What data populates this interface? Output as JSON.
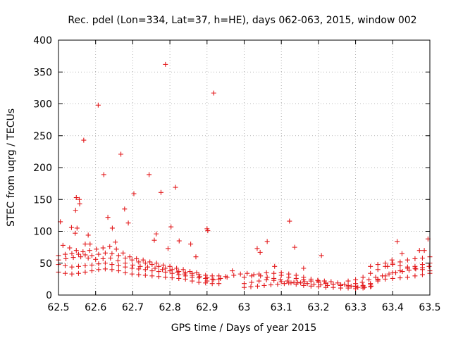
{
  "chart_data": {
    "type": "scatter",
    "title": "Rec. pdel (Lon=334, Lat=37, h=HE), days 062-063, 2015, window 002",
    "xlabel": "GPS time / Days of year 2015",
    "ylabel": "STEC from uqrg / TECUs",
    "xlim": [
      62.5,
      63.5
    ],
    "ylim": [
      0,
      400
    ],
    "x_ticks": [
      62.5,
      62.6,
      62.7,
      62.8,
      62.9,
      63,
      63.1,
      63.2,
      63.3,
      63.4,
      63.5
    ],
    "x_tick_labels": [
      "62.5",
      "62.6",
      "62.7",
      "62.8",
      "62.9",
      "63",
      "63.1",
      "63.2",
      "63.3",
      "63.4",
      "63.5"
    ],
    "y_ticks": [
      0,
      50,
      100,
      150,
      200,
      250,
      300,
      350,
      400
    ],
    "y_tick_labels": [
      "0",
      "50",
      "100",
      "150",
      "200",
      "250",
      "300",
      "350",
      "400"
    ],
    "grid": true,
    "marker": "+",
    "color": "#e31a1c",
    "outliers": [
      [
        62.505,
        115
      ],
      [
        62.535,
        106
      ],
      [
        62.545,
        97
      ],
      [
        62.548,
        153
      ],
      [
        62.55,
        105
      ],
      [
        62.546,
        133
      ],
      [
        62.556,
        150
      ],
      [
        62.557,
        143
      ],
      [
        62.568,
        243
      ],
      [
        62.572,
        80
      ],
      [
        62.58,
        94
      ],
      [
        62.585,
        80
      ],
      [
        62.607,
        298
      ],
      [
        62.622,
        189
      ],
      [
        62.633,
        122
      ],
      [
        62.645,
        105
      ],
      [
        62.653,
        83
      ],
      [
        62.668,
        221
      ],
      [
        62.678,
        135
      ],
      [
        62.688,
        113
      ],
      [
        62.703,
        159
      ],
      [
        62.744,
        189
      ],
      [
        62.758,
        86
      ],
      [
        62.763,
        96
      ],
      [
        62.776,
        161
      ],
      [
        62.788,
        362
      ],
      [
        62.795,
        73
      ],
      [
        62.803,
        107
      ],
      [
        62.815,
        169
      ],
      [
        62.825,
        85
      ],
      [
        62.856,
        80
      ],
      [
        62.87,
        60
      ],
      [
        62.9,
        104
      ],
      [
        62.902,
        101
      ],
      [
        62.918,
        317
      ],
      [
        62.968,
        38
      ],
      [
        63.035,
        73
      ],
      [
        63.043,
        67
      ],
      [
        63.062,
        84
      ],
      [
        63.082,
        45
      ],
      [
        63.122,
        116
      ],
      [
        63.136,
        75
      ],
      [
        63.16,
        42
      ],
      [
        63.208,
        62
      ],
      [
        63.386,
        45
      ],
      [
        63.398,
        55
      ],
      [
        63.412,
        84
      ],
      [
        63.425,
        65
      ],
      [
        63.472,
        70
      ],
      [
        63.485,
        70
      ],
      [
        63.495,
        88
      ]
    ],
    "series": [
      {
        "name": "track-1",
        "points": [
          [
            62.5,
            36
          ],
          [
            62.518,
            34
          ],
          [
            62.536,
            33
          ],
          [
            62.554,
            34
          ],
          [
            62.572,
            36
          ],
          [
            62.59,
            38
          ],
          [
            62.608,
            40
          ],
          [
            62.626,
            41
          ],
          [
            62.644,
            40
          ],
          [
            62.662,
            38
          ],
          [
            62.68,
            35
          ],
          [
            62.698,
            33
          ],
          [
            62.716,
            32
          ],
          [
            62.734,
            31
          ],
          [
            62.752,
            30
          ],
          [
            62.77,
            29
          ],
          [
            62.788,
            28
          ],
          [
            62.806,
            27
          ],
          [
            62.824,
            26
          ],
          [
            62.842,
            25
          ],
          [
            62.86,
            22
          ],
          [
            62.878,
            20
          ],
          [
            62.896,
            19
          ],
          [
            62.914,
            18
          ],
          [
            62.932,
            18
          ]
        ]
      },
      {
        "name": "track-2",
        "points": [
          [
            62.5,
            48
          ],
          [
            62.518,
            46
          ],
          [
            62.536,
            44
          ],
          [
            62.554,
            45
          ],
          [
            62.572,
            46
          ],
          [
            62.59,
            47
          ],
          [
            62.608,
            49
          ],
          [
            62.626,
            50
          ],
          [
            62.644,
            48
          ],
          [
            62.662,
            46
          ],
          [
            62.68,
            44
          ],
          [
            62.698,
            42
          ],
          [
            62.716,
            41
          ],
          [
            62.734,
            40
          ],
          [
            62.752,
            38
          ],
          [
            62.77,
            37
          ],
          [
            62.788,
            36
          ],
          [
            62.806,
            34
          ],
          [
            62.824,
            32
          ],
          [
            62.842,
            30
          ],
          [
            62.86,
            28
          ],
          [
            62.878,
            27
          ],
          [
            62.896,
            26
          ],
          [
            62.914,
            25
          ],
          [
            62.932,
            25
          ]
        ]
      },
      {
        "name": "track-3",
        "points": [
          [
            62.5,
            62
          ],
          [
            62.518,
            64
          ],
          [
            62.536,
            65
          ],
          [
            62.554,
            64
          ],
          [
            62.572,
            63
          ],
          [
            62.59,
            62
          ],
          [
            62.608,
            64
          ],
          [
            62.626,
            66
          ],
          [
            62.644,
            65
          ],
          [
            62.662,
            62
          ],
          [
            62.68,
            58
          ],
          [
            62.698,
            55
          ],
          [
            62.716,
            52
          ],
          [
            62.734,
            50
          ],
          [
            62.752,
            48
          ],
          [
            62.77,
            45
          ],
          [
            62.788,
            42
          ],
          [
            62.806,
            40
          ],
          [
            62.824,
            37
          ],
          [
            62.842,
            35
          ],
          [
            62.86,
            34
          ],
          [
            62.878,
            32
          ],
          [
            62.896,
            31
          ],
          [
            62.914,
            30
          ],
          [
            62.932,
            30
          ],
          [
            62.95,
            29
          ]
        ]
      },
      {
        "name": "track-4",
        "points": [
          [
            62.512,
            78
          ],
          [
            62.53,
            74
          ],
          [
            62.548,
            70
          ],
          [
            62.566,
            68
          ],
          [
            62.584,
            70
          ],
          [
            62.602,
            72
          ],
          [
            62.62,
            74
          ],
          [
            62.638,
            76
          ],
          [
            62.656,
            72
          ],
          [
            62.674,
            66
          ],
          [
            62.692,
            60
          ],
          [
            62.71,
            57
          ],
          [
            62.728,
            55
          ],
          [
            62.746,
            52
          ],
          [
            62.764,
            50
          ],
          [
            62.782,
            47
          ],
          [
            62.8,
            45
          ],
          [
            62.818,
            42
          ],
          [
            62.836,
            40
          ],
          [
            62.854,
            37
          ],
          [
            62.872,
            35
          ]
        ]
      },
      {
        "name": "track-5",
        "points": [
          [
            62.5,
            55
          ],
          [
            62.52,
            57
          ],
          [
            62.54,
            59
          ],
          [
            62.56,
            60
          ],
          [
            62.58,
            58
          ],
          [
            62.6,
            56
          ],
          [
            62.62,
            57
          ],
          [
            62.64,
            58
          ],
          [
            62.66,
            54
          ],
          [
            62.68,
            50
          ],
          [
            62.7,
            47
          ],
          [
            62.72,
            45
          ],
          [
            62.74,
            44
          ],
          [
            62.76,
            42
          ],
          [
            62.78,
            40
          ],
          [
            62.8,
            38
          ],
          [
            62.82,
            36
          ],
          [
            62.84,
            33
          ],
          [
            62.86,
            31
          ],
          [
            62.88,
            29
          ],
          [
            62.9,
            27
          ]
        ]
      },
      {
        "name": "track-6",
        "points": [
          [
            62.9,
            22
          ],
          [
            62.918,
            24
          ],
          [
            62.936,
            26
          ],
          [
            62.954,
            28
          ],
          [
            62.972,
            31
          ],
          [
            62.99,
            33
          ],
          [
            63.008,
            34
          ],
          [
            63.026,
            32
          ],
          [
            63.044,
            30
          ],
          [
            63.062,
            28
          ],
          [
            63.08,
            26
          ],
          [
            63.098,
            24
          ],
          [
            63.116,
            22
          ],
          [
            63.134,
            20
          ],
          [
            63.152,
            19
          ],
          [
            63.17,
            18
          ],
          [
            63.188,
            17
          ],
          [
            63.206,
            16
          ],
          [
            63.224,
            15
          ]
        ]
      },
      {
        "name": "track-7",
        "points": [
          [
            63.0,
            12
          ],
          [
            63.018,
            13
          ],
          [
            63.036,
            14
          ],
          [
            63.054,
            15
          ],
          [
            63.072,
            16
          ],
          [
            63.09,
            17
          ],
          [
            63.108,
            18
          ],
          [
            63.126,
            19
          ],
          [
            63.144,
            20
          ],
          [
            63.162,
            21
          ],
          [
            63.18,
            22
          ],
          [
            63.198,
            23
          ],
          [
            63.216,
            22
          ],
          [
            63.234,
            21
          ],
          [
            63.252,
            19
          ],
          [
            63.27,
            17
          ],
          [
            63.288,
            14
          ],
          [
            63.306,
            12
          ],
          [
            63.324,
            12
          ],
          [
            63.342,
            14
          ]
        ]
      },
      {
        "name": "track-8",
        "points": [
          [
            63.0,
            18
          ],
          [
            63.02,
            20
          ],
          [
            63.04,
            22
          ],
          [
            63.06,
            24
          ],
          [
            63.08,
            23
          ],
          [
            63.1,
            21
          ],
          [
            63.12,
            19
          ],
          [
            63.14,
            17
          ],
          [
            63.16,
            15
          ],
          [
            63.18,
            14
          ],
          [
            63.2,
            13
          ],
          [
            63.22,
            12
          ],
          [
            63.24,
            12
          ],
          [
            63.26,
            11
          ],
          [
            63.28,
            11
          ],
          [
            63.3,
            10
          ],
          [
            63.32,
            11
          ],
          [
            63.34,
            13
          ]
        ]
      },
      {
        "name": "track-9",
        "points": [
          [
            63.0,
            28
          ],
          [
            63.02,
            30
          ],
          [
            63.04,
            33
          ],
          [
            63.06,
            35
          ],
          [
            63.08,
            34
          ],
          [
            63.1,
            31
          ],
          [
            63.12,
            28
          ],
          [
            63.14,
            26
          ],
          [
            63.16,
            24
          ],
          [
            63.18,
            22
          ],
          [
            63.2,
            20
          ],
          [
            63.22,
            18
          ],
          [
            63.24,
            17
          ],
          [
            63.26,
            16
          ],
          [
            63.28,
            15
          ],
          [
            63.3,
            14
          ],
          [
            63.32,
            15
          ],
          [
            63.34,
            17
          ],
          [
            63.36,
            22
          ]
        ]
      },
      {
        "name": "track-10",
        "points": [
          [
            63.1,
            35
          ],
          [
            63.12,
            33
          ],
          [
            63.14,
            31
          ],
          [
            63.16,
            28
          ],
          [
            63.18,
            25
          ],
          [
            63.2,
            22
          ],
          [
            63.22,
            19
          ],
          [
            63.24,
            17
          ],
          [
            63.26,
            15
          ],
          [
            63.28,
            14
          ],
          [
            63.3,
            13
          ],
          [
            63.32,
            14
          ],
          [
            63.34,
            18
          ],
          [
            63.36,
            25
          ],
          [
            63.38,
            30
          ],
          [
            63.4,
            35
          ],
          [
            63.42,
            38
          ],
          [
            63.44,
            42
          ],
          [
            63.46,
            45
          ],
          [
            63.48,
            48
          ],
          [
            63.5,
            50
          ]
        ]
      },
      {
        "name": "track-11",
        "points": [
          [
            63.3,
            18
          ],
          [
            63.318,
            20
          ],
          [
            63.336,
            24
          ],
          [
            63.354,
            28
          ],
          [
            63.372,
            30
          ],
          [
            63.39,
            33
          ],
          [
            63.408,
            35
          ],
          [
            63.426,
            37
          ],
          [
            63.444,
            39
          ],
          [
            63.462,
            41
          ],
          [
            63.48,
            43
          ],
          [
            63.498,
            45
          ]
        ]
      },
      {
        "name": "track-12",
        "points": [
          [
            63.28,
            22
          ],
          [
            63.3,
            24
          ],
          [
            63.32,
            28
          ],
          [
            63.34,
            34
          ],
          [
            63.36,
            40
          ],
          [
            63.38,
            45
          ],
          [
            63.4,
            50
          ],
          [
            63.42,
            52
          ],
          [
            63.44,
            55
          ],
          [
            63.46,
            57
          ],
          [
            63.48,
            58
          ],
          [
            63.5,
            60
          ]
        ]
      },
      {
        "name": "track-13",
        "points": [
          [
            63.34,
            45
          ],
          [
            63.36,
            48
          ],
          [
            63.38,
            50
          ],
          [
            63.4,
            48
          ],
          [
            63.42,
            46
          ],
          [
            63.44,
            44
          ],
          [
            63.46,
            42
          ],
          [
            63.48,
            40
          ],
          [
            63.5,
            38
          ]
        ]
      },
      {
        "name": "track-14",
        "points": [
          [
            63.36,
            24
          ],
          [
            63.38,
            25
          ],
          [
            63.4,
            26
          ],
          [
            63.42,
            27
          ],
          [
            63.44,
            28
          ],
          [
            63.46,
            30
          ],
          [
            63.48,
            32
          ],
          [
            63.5,
            34
          ]
        ]
      }
    ]
  }
}
